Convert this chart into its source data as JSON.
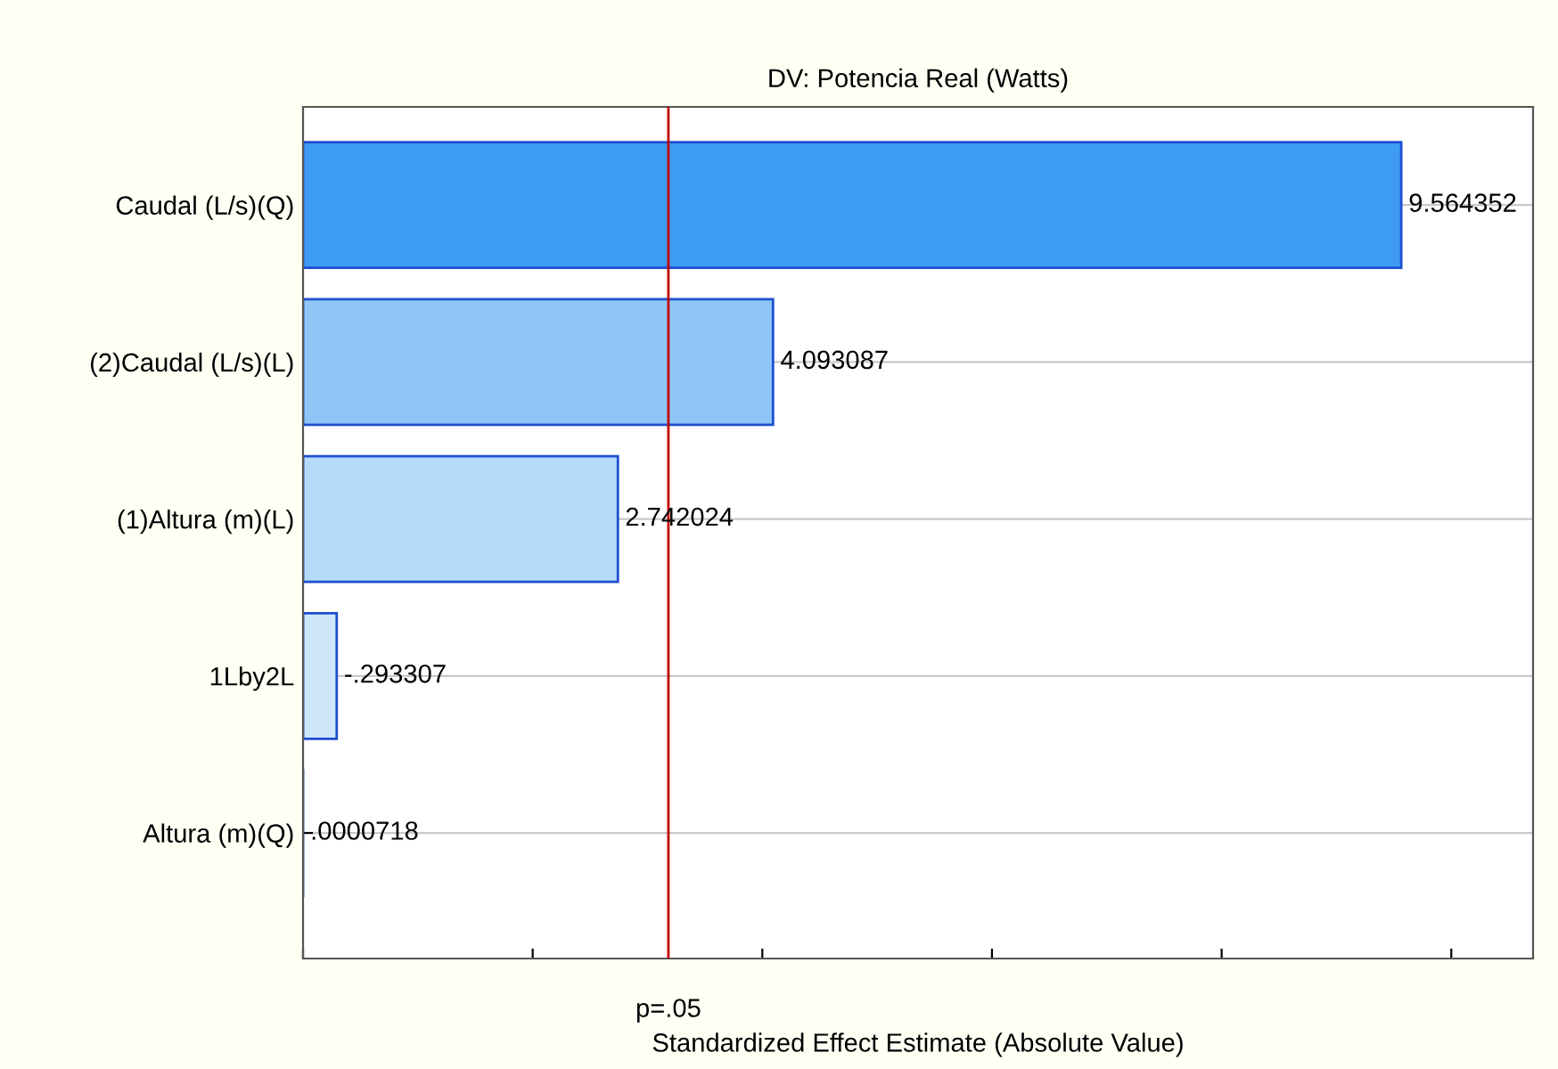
{
  "chart_data": {
    "type": "bar",
    "orientation": "horizontal",
    "title": "DV: Potencia Real (Watts)",
    "xlabel": "Standardized Effect Estimate (Absolute Value)",
    "categories": [
      "Caudal (L/s)(Q)",
      "(2)Caudal (L/s)(L)",
      "(1)Altura (m)(L)",
      "1Lby2L",
      "Altura (m)(Q)"
    ],
    "values": [
      9.564352,
      4.093087,
      2.742024,
      0.293307,
      7.18e-05
    ],
    "value_labels": [
      "9.564352",
      "4.093087",
      "2.742024",
      null,
      ".0000718"
    ],
    "annotations": [
      {
        "text": "-.293307",
        "x": 0.293307,
        "y": "1Lby2L"
      }
    ],
    "colors": [
      "#3d9bf5",
      "#8ec6f7",
      "#b5dbf9",
      "#cfe7fb",
      "#d8ecfc"
    ],
    "ref_lines": [
      {
        "axis": "x",
        "value": 3.182,
        "label": "p=.05",
        "color": "#c00000"
      }
    ],
    "tick_labels": "y",
    "grid": "y"
  }
}
